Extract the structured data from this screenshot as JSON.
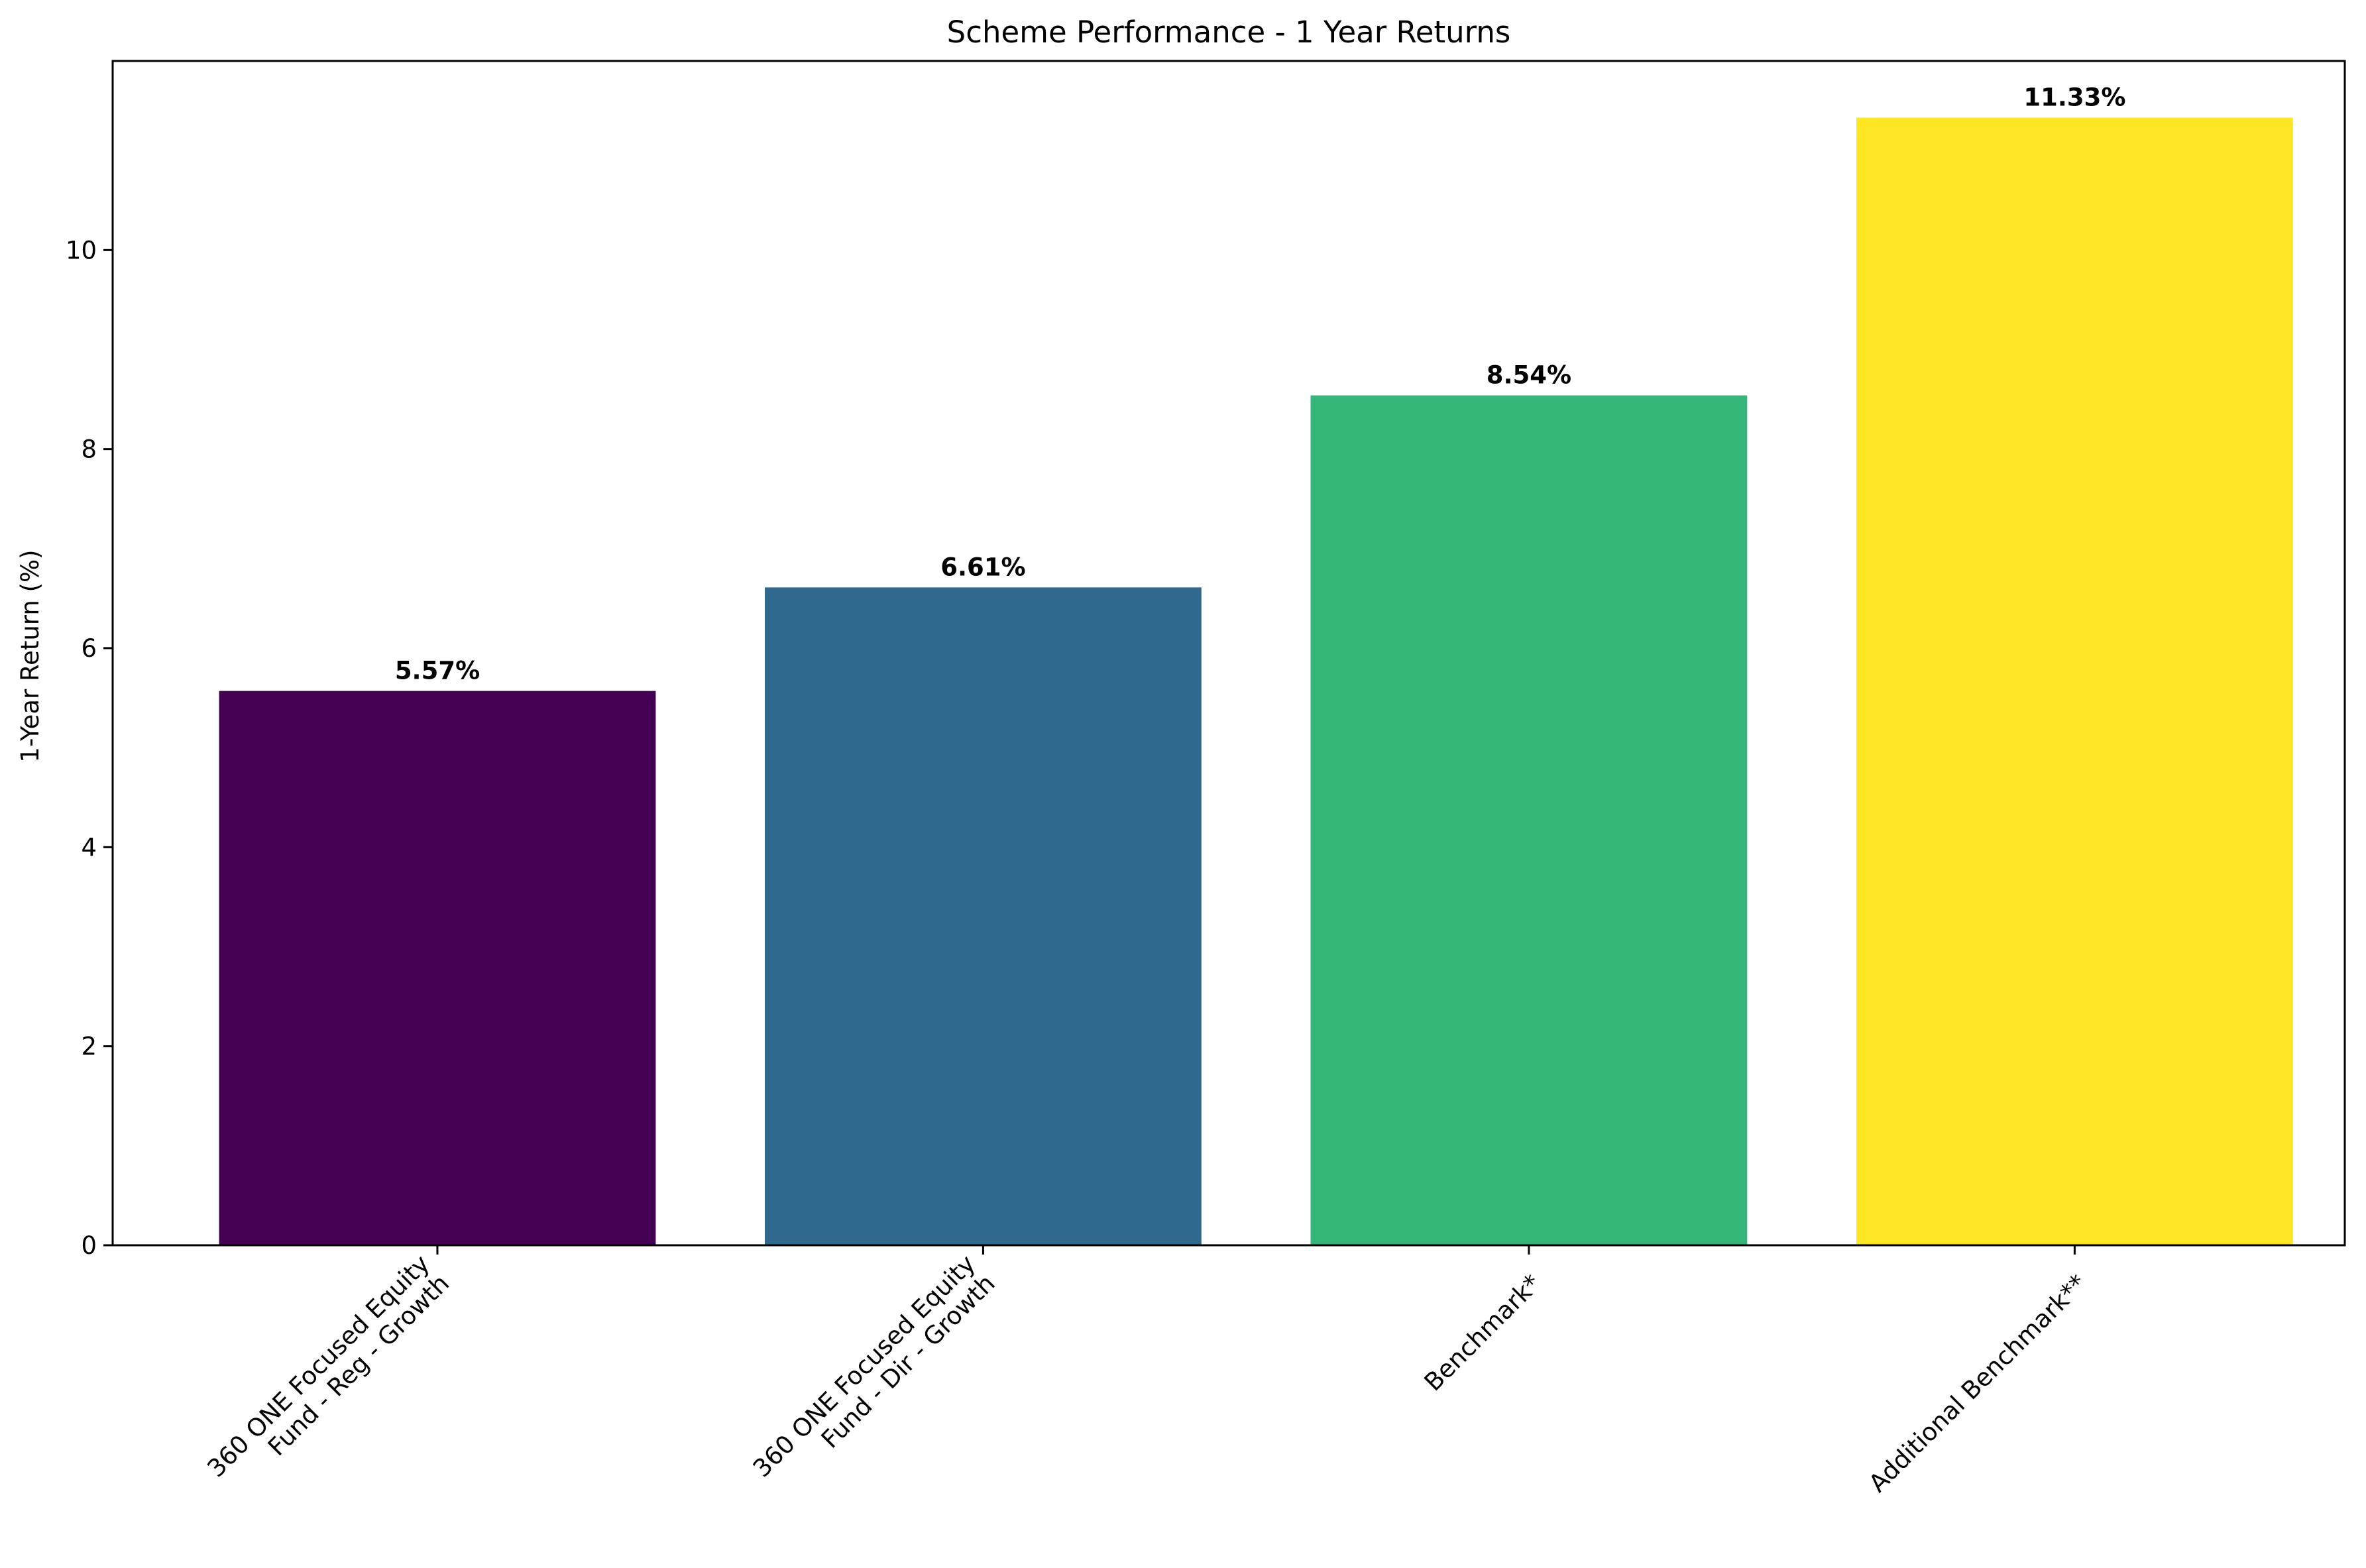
{
  "chart_data": {
    "type": "bar",
    "title": "Scheme Performance - 1 Year Returns",
    "xlabel": "",
    "ylabel": "1-Year Return (%)",
    "ylim": [
      0,
      11.9
    ],
    "yticks": [
      0,
      2,
      4,
      6,
      8,
      10
    ],
    "categories": [
      [
        "360 ONE Focused Equity",
        "Fund - Reg - Growth"
      ],
      [
        "360 ONE Focused Equity",
        "Fund - Dir - Growth"
      ],
      [
        "Benchmark*"
      ],
      [
        "Additional Benchmark**"
      ]
    ],
    "values": [
      5.57,
      6.61,
      8.54,
      11.33
    ],
    "data_labels": [
      "5.57%",
      "6.61%",
      "8.54%",
      "11.33%"
    ],
    "colors": [
      "#440154",
      "#31688e",
      "#35b779",
      "#fde725"
    ],
    "grid": false,
    "legend": "none"
  }
}
